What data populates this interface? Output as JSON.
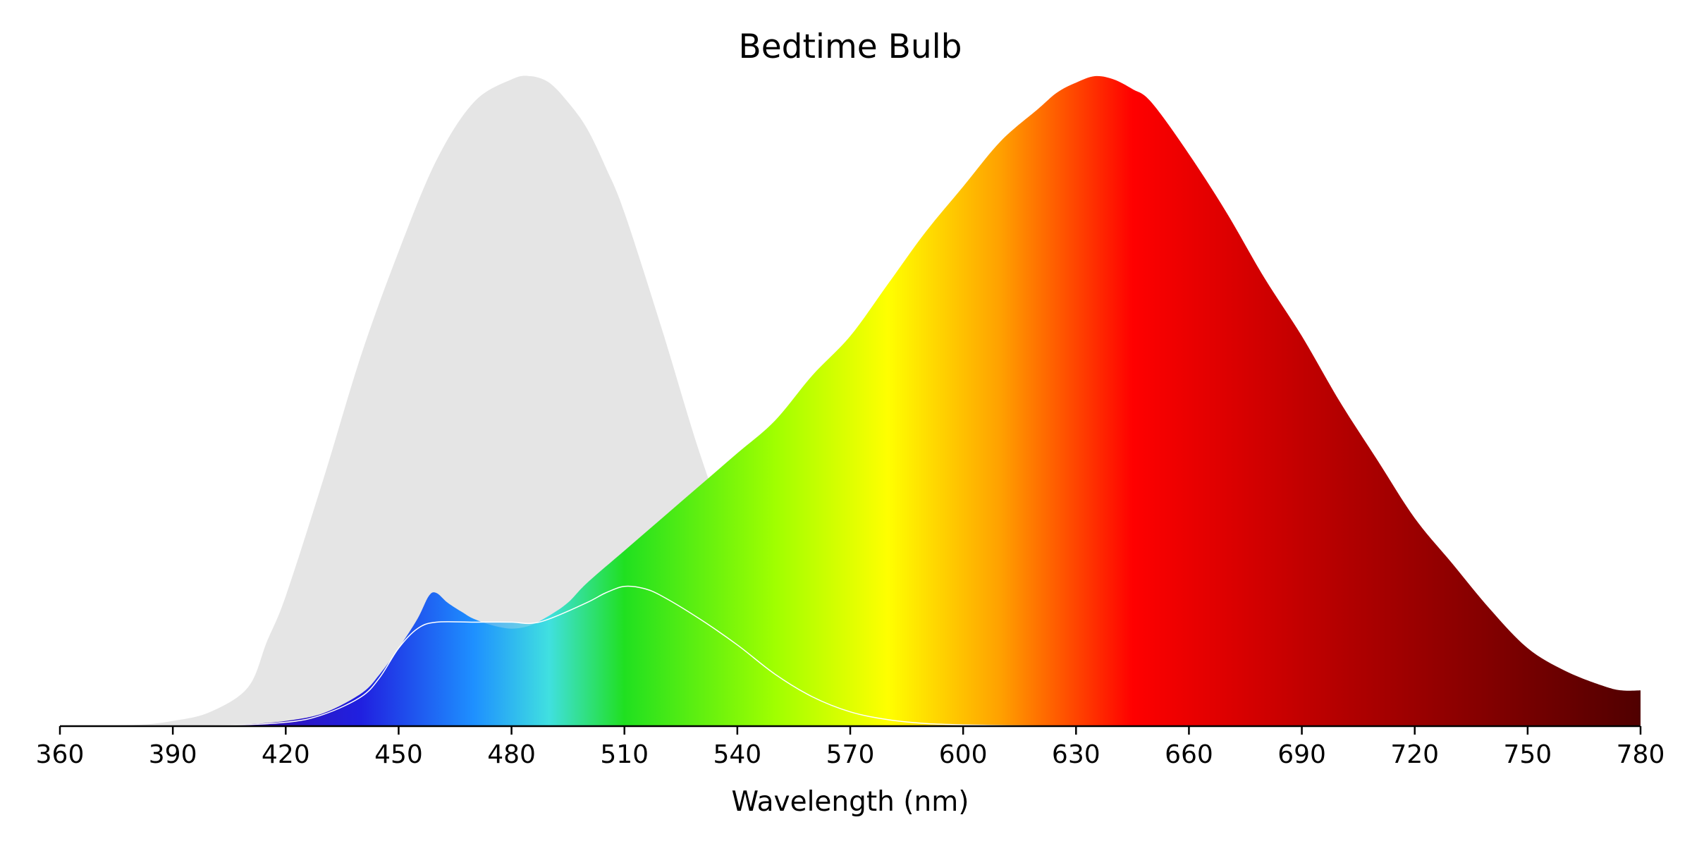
{
  "chart_data": {
    "type": "area",
    "title": "Bedtime Bulb",
    "xlabel": "Wavelength (nm)",
    "ylabel": "",
    "xlim": [
      360,
      780
    ],
    "ylim": [
      0,
      1
    ],
    "xticks": [
      360,
      390,
      420,
      450,
      480,
      510,
      540,
      570,
      600,
      630,
      660,
      690,
      720,
      750,
      780
    ],
    "grid": false,
    "y_axis_visible": false,
    "colors": {
      "melanopic_sensitivity_fill": "#e5e5e5",
      "outline": "#ffffff",
      "axis": "#000000",
      "spectrum_stops": [
        {
          "nm": 380,
          "color": "#4b0082"
        },
        {
          "nm": 440,
          "color": "#2020e0"
        },
        {
          "nm": 470,
          "color": "#1e90ff"
        },
        {
          "nm": 490,
          "color": "#40e0e0"
        },
        {
          "nm": 510,
          "color": "#20e020"
        },
        {
          "nm": 550,
          "color": "#a0ff00"
        },
        {
          "nm": 580,
          "color": "#ffff00"
        },
        {
          "nm": 610,
          "color": "#ffa000"
        },
        {
          "nm": 645,
          "color": "#ff0000"
        },
        {
          "nm": 700,
          "color": "#b40000"
        },
        {
          "nm": 780,
          "color": "#500000"
        }
      ]
    },
    "series": [
      {
        "key": "melanopic",
        "x": [
          360,
          380,
          390,
          400,
          410,
          415,
          420,
          430,
          440,
          450,
          460,
          470,
          480,
          485,
          490,
          495,
          500,
          505,
          510,
          520,
          530,
          540,
          550,
          560,
          570,
          580,
          590,
          600,
          620,
          640,
          660
        ],
        "values": [
          0,
          0.002,
          0.008,
          0.022,
          0.06,
          0.13,
          0.2,
          0.38,
          0.57,
          0.73,
          0.87,
          0.96,
          0.995,
          1.0,
          0.99,
          0.96,
          0.92,
          0.86,
          0.79,
          0.61,
          0.42,
          0.26,
          0.13,
          0.06,
          0.025,
          0.008,
          0.003,
          0.001,
          0.0005,
          0.0002,
          0
        ]
      },
      {
        "key": "emission",
        "x": [
          360,
          390,
          400,
          410,
          420,
          430,
          440,
          445,
          450,
          455,
          458,
          460,
          463,
          467,
          470,
          475,
          480,
          485,
          490,
          495,
          500,
          510,
          520,
          530,
          540,
          550,
          560,
          570,
          580,
          590,
          600,
          610,
          620,
          625,
          630,
          635,
          640,
          645,
          650,
          660,
          670,
          680,
          690,
          700,
          710,
          720,
          730,
          740,
          750,
          760,
          770,
          775,
          780
        ],
        "values": [
          0,
          0,
          0.001,
          0.003,
          0.008,
          0.02,
          0.05,
          0.08,
          0.12,
          0.165,
          0.2,
          0.205,
          0.19,
          0.175,
          0.165,
          0.155,
          0.15,
          0.155,
          0.17,
          0.19,
          0.22,
          0.27,
          0.32,
          0.37,
          0.42,
          0.47,
          0.54,
          0.6,
          0.68,
          0.76,
          0.83,
          0.9,
          0.95,
          0.975,
          0.99,
          1.0,
          0.995,
          0.98,
          0.96,
          0.88,
          0.79,
          0.69,
          0.6,
          0.5,
          0.41,
          0.32,
          0.25,
          0.18,
          0.12,
          0.085,
          0.062,
          0.055,
          0.055
        ]
      },
      {
        "key": "overlap",
        "x": [
          360,
          400,
          420,
          430,
          440,
          445,
          450,
          455,
          460,
          470,
          480,
          485,
          490,
          500,
          505,
          510,
          515,
          520,
          530,
          540,
          550,
          560,
          570,
          580,
          590,
          600,
          610,
          620,
          630
        ],
        "values": [
          0,
          0.001,
          0.006,
          0.018,
          0.045,
          0.075,
          0.12,
          0.15,
          0.16,
          0.16,
          0.16,
          0.158,
          0.165,
          0.19,
          0.205,
          0.215,
          0.212,
          0.2,
          0.165,
          0.125,
          0.08,
          0.045,
          0.022,
          0.01,
          0.004,
          0.002,
          0.001,
          0.0003,
          0
        ]
      }
    ]
  }
}
